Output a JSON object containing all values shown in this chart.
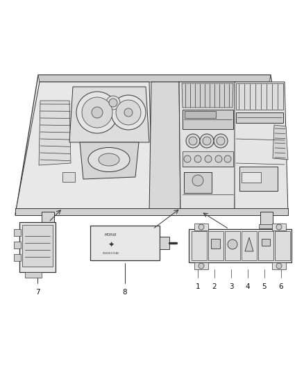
{
  "bg_color": "#ffffff",
  "line_color": "#333333",
  "fill_light": "#f0f0f0",
  "fill_mid": "#d8d8d8",
  "fill_dark": "#bbbbbb",
  "fig_width": 4.38,
  "fig_height": 5.33,
  "dpi": 100,
  "lw_main": 0.9,
  "lw_thin": 0.5,
  "lw_med": 0.7,
  "label_fontsize": 7.5,
  "label_color": "#111111"
}
